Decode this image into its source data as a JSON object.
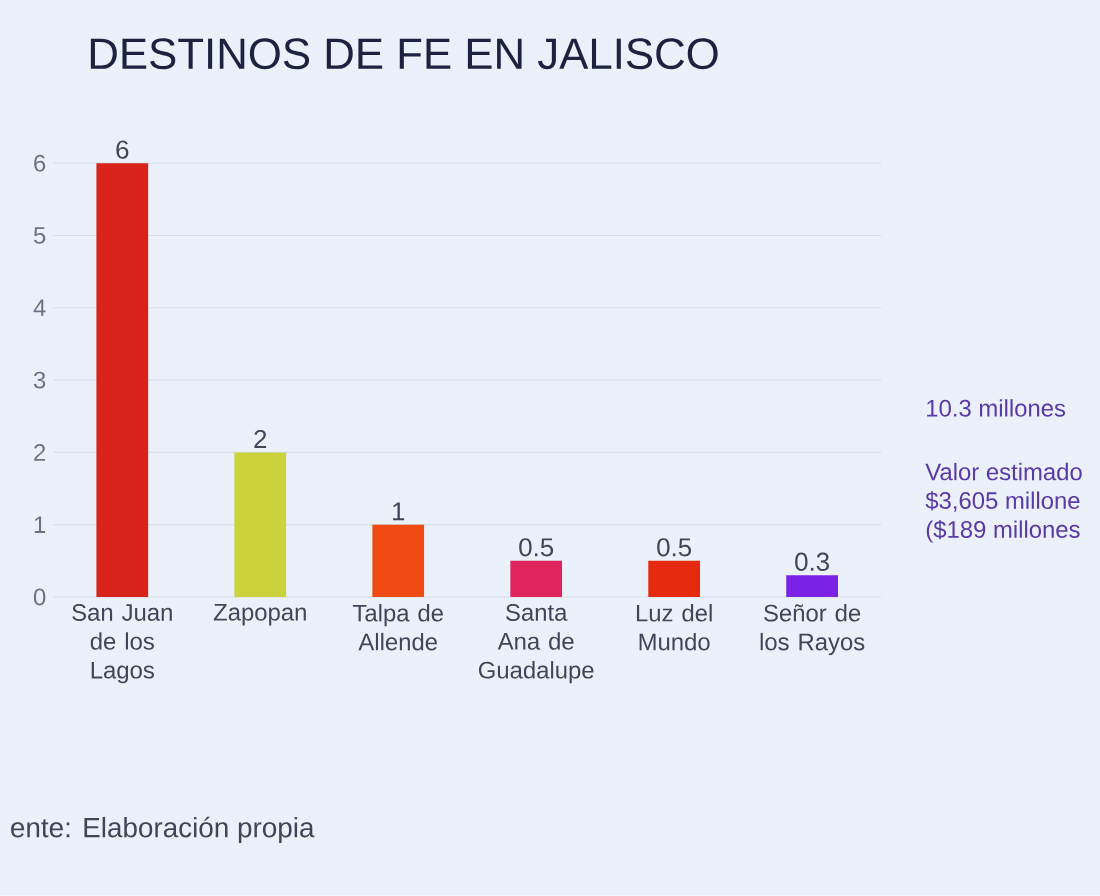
{
  "chart_data": {
    "type": "bar",
    "title": "DESTINOS DE FE EN JALISCO",
    "categories": [
      "San Juan de los Lagos",
      "Zapopan",
      "Talpa de Allende",
      "Santa Ana de Guadalupe",
      "Luz del Mundo",
      "Señor de los Rayos"
    ],
    "values": [
      6,
      2,
      1,
      0.5,
      0.5,
      0.3
    ],
    "colors": [
      "#d8231a",
      "#ccd23c",
      "#ee4a12",
      "#e0245e",
      "#e52a10",
      "#7a22e6"
    ],
    "ylim": [
      0,
      6
    ],
    "yticks": [
      0,
      1,
      2,
      3,
      4,
      5,
      6
    ],
    "grid": "y",
    "data_labels": true,
    "annotations": [
      "ente: Elaboración propia",
      "10.3 millones",
      "Valor estimado",
      "$3,605 millone",
      "($189 millones"
    ]
  }
}
